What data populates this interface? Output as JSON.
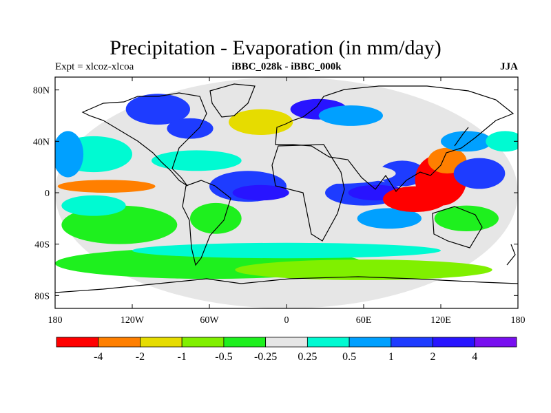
{
  "title": "Precipitation - Evaporation (in mm/day)",
  "subtitle_left": "Expt = xlcoz-xlcoa",
  "subtitle_center": "iBBC_028k - iBBC_000k",
  "subtitle_right": "JJA",
  "map": {
    "projection": "cylindrical-equidistant",
    "lon_range": [
      -180,
      180
    ],
    "lat_range": [
      -90,
      90
    ],
    "x_ticks": [
      {
        "value": -180,
        "label": "180"
      },
      {
        "value": -120,
        "label": "120W"
      },
      {
        "value": -60,
        "label": "60W"
      },
      {
        "value": 0,
        "label": "0"
      },
      {
        "value": 60,
        "label": "60E"
      },
      {
        "value": 120,
        "label": "120E"
      },
      {
        "value": 180,
        "label": "180"
      }
    ],
    "y_ticks": [
      {
        "value": 80,
        "label": "80N"
      },
      {
        "value": 40,
        "label": "40N"
      },
      {
        "value": 0,
        "label": "0"
      },
      {
        "value": -40,
        "label": "40S"
      },
      {
        "value": -80,
        "label": "80S"
      }
    ]
  },
  "colorbar": {
    "colors": [
      "#ff0000",
      "#ff7f00",
      "#e6dc00",
      "#80f000",
      "#1ef01e",
      "#e6e6e6",
      "#00fad2",
      "#00a0ff",
      "#1e3cff",
      "#2814ff",
      "#780ff0"
    ],
    "labels": [
      "-4",
      "-2",
      "-1",
      "-0.5",
      "-0.25",
      "0.25",
      "0.5",
      "1",
      "2",
      "4"
    ]
  },
  "regions": [
    {
      "lon": 0,
      "lat": 0,
      "rx": 180,
      "ry": 90,
      "level": 5
    },
    {
      "lon": -60,
      "lat": -55,
      "rx": 120,
      "ry": 12,
      "level": 4
    },
    {
      "lon": 60,
      "lat": -60,
      "rx": 100,
      "ry": 8,
      "level": 3
    },
    {
      "lon": -130,
      "lat": -25,
      "rx": 45,
      "ry": 15,
      "level": 4
    },
    {
      "lon": -150,
      "lat": 30,
      "rx": 30,
      "ry": 14,
      "level": 6
    },
    {
      "lon": -170,
      "lat": 30,
      "rx": 12,
      "ry": 18,
      "level": 7
    },
    {
      "lon": -140,
      "lat": 5,
      "rx": 38,
      "ry": 5,
      "level": 1
    },
    {
      "lon": -150,
      "lat": -10,
      "rx": 25,
      "ry": 8,
      "level": 6
    },
    {
      "lon": -100,
      "lat": 65,
      "rx": 25,
      "ry": 12,
      "level": 8
    },
    {
      "lon": -75,
      "lat": 50,
      "rx": 18,
      "ry": 8,
      "level": 8
    },
    {
      "lon": -70,
      "lat": 25,
      "rx": 35,
      "ry": 8,
      "level": 6
    },
    {
      "lon": -30,
      "lat": 5,
      "rx": 30,
      "ry": 12,
      "level": 8
    },
    {
      "lon": -20,
      "lat": 0,
      "rx": 22,
      "ry": 6,
      "level": 9
    },
    {
      "lon": -55,
      "lat": -20,
      "rx": 20,
      "ry": 12,
      "level": 4
    },
    {
      "lon": -20,
      "lat": 55,
      "rx": 25,
      "ry": 10,
      "level": 2
    },
    {
      "lon": 25,
      "lat": 65,
      "rx": 22,
      "ry": 8,
      "level": 9
    },
    {
      "lon": 50,
      "lat": 60,
      "rx": 25,
      "ry": 8,
      "level": 7
    },
    {
      "lon": 60,
      "lat": 0,
      "rx": 30,
      "ry": 10,
      "level": 8
    },
    {
      "lon": 70,
      "lat": 0,
      "rx": 22,
      "ry": 6,
      "level": 9
    },
    {
      "lon": 80,
      "lat": -20,
      "rx": 25,
      "ry": 8,
      "level": 7
    },
    {
      "lon": 90,
      "lat": 15,
      "rx": 18,
      "ry": 10,
      "level": 8
    },
    {
      "lon": 100,
      "lat": -5,
      "rx": 25,
      "ry": 10,
      "level": 0
    },
    {
      "lon": 120,
      "lat": 10,
      "rx": 20,
      "ry": 20,
      "level": 0
    },
    {
      "lon": 125,
      "lat": 25,
      "rx": 15,
      "ry": 10,
      "level": 1
    },
    {
      "lon": 140,
      "lat": 40,
      "rx": 20,
      "ry": 8,
      "level": 7
    },
    {
      "lon": 150,
      "lat": 15,
      "rx": 20,
      "ry": 12,
      "level": 8
    },
    {
      "lon": 170,
      "lat": 40,
      "rx": 15,
      "ry": 8,
      "level": 6
    },
    {
      "lon": 140,
      "lat": -20,
      "rx": 25,
      "ry": 10,
      "level": 4
    },
    {
      "lon": 40,
      "lat": 15,
      "rx": 45,
      "ry": 8,
      "level": 5
    },
    {
      "lon": 0,
      "lat": -45,
      "rx": 120,
      "ry": 6,
      "level": 6
    }
  ]
}
